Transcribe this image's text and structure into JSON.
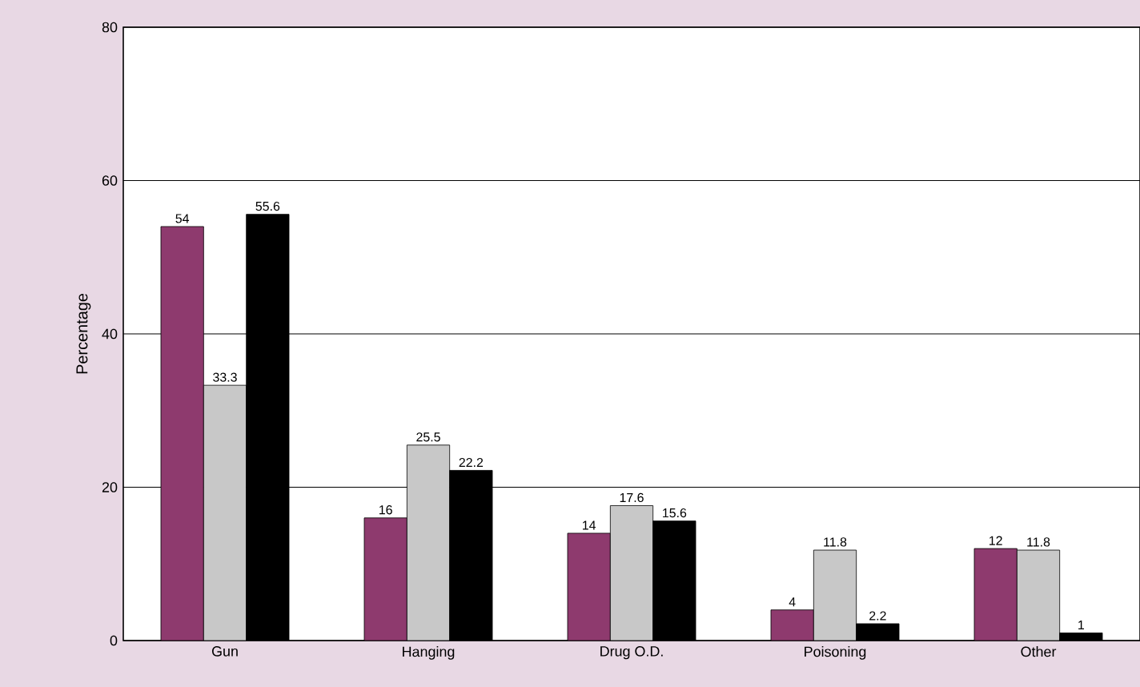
{
  "chart_data": {
    "type": "bar",
    "ylabel": "Percentage",
    "categories": [
      "Gun",
      "Hanging",
      "Drug O.D.",
      "Poisoning",
      "Other"
    ],
    "series": [
      {
        "color": "#8e3a6e",
        "values": [
          54,
          16,
          14,
          4,
          12
        ]
      },
      {
        "color": "#c8c8c8",
        "values": [
          33.3,
          25.5,
          17.6,
          11.8,
          11.8
        ]
      },
      {
        "color": "#000000",
        "values": [
          55.6,
          22.2,
          15.6,
          2.2,
          1
        ]
      }
    ],
    "ylim": [
      0,
      80
    ],
    "yticks": [
      0,
      20,
      40,
      60,
      80
    ],
    "grid": "y",
    "data_labels": true
  }
}
